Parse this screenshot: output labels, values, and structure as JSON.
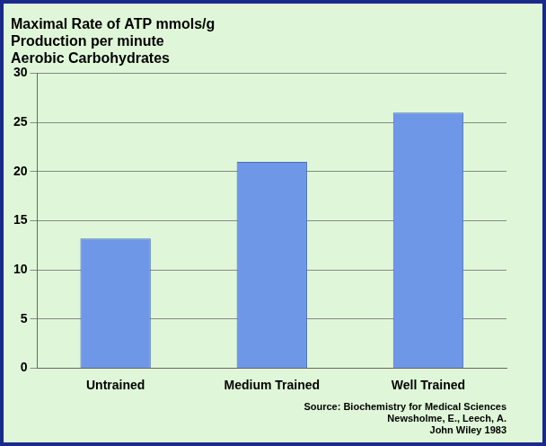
{
  "chart_data": {
    "type": "bar",
    "title": [
      "Maximal Rate of ATP mmols/g",
      "Production per minute",
      "Aerobic Carbohydrates"
    ],
    "categories": [
      "Untrained",
      "Medium Trained",
      "Well Trained"
    ],
    "values": [
      13.2,
      21,
      26
    ],
    "color": "#6f97e8",
    "ylim": [
      0,
      30
    ],
    "yticks": [
      0,
      5,
      10,
      15,
      20,
      25,
      30
    ],
    "grid": true,
    "annotations": [
      "Source: Biochemistry for Medical Sciences",
      "Newsholme, E., Leech, A.",
      "John Wiley 1983"
    ]
  }
}
